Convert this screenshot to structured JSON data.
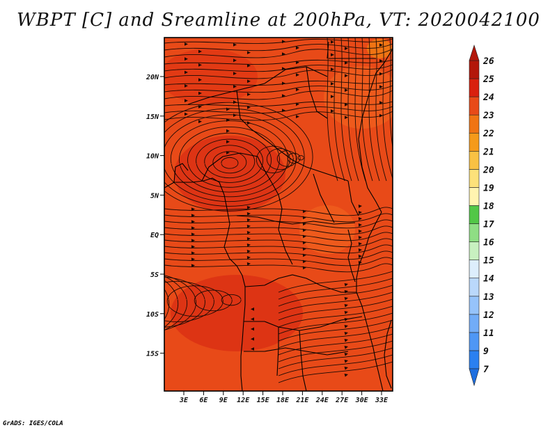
{
  "title": "WBPT [C] and Sreamline at 200hPa, VT: 2020042100",
  "credit": "GrADS: IGES/COLA",
  "map": {
    "lat_labels": [
      "20N",
      "15N",
      "10N",
      "5N",
      "EQ",
      "5S",
      "10S",
      "15S"
    ],
    "lon_labels": [
      "3E",
      "6E",
      "9E",
      "12E",
      "15E",
      "18E",
      "21E",
      "24E",
      "27E",
      "30E",
      "33E"
    ],
    "field_color": "#e23a14",
    "background_color": "#e84a18"
  },
  "colorbar": {
    "labels": [
      "7",
      "9",
      "11",
      "12",
      "13",
      "14",
      "15",
      "16",
      "17",
      "18",
      "19",
      "20",
      "21",
      "22",
      "23",
      "24",
      "25",
      "26"
    ],
    "colors": [
      "#1e6fe0",
      "#2a80f0",
      "#4f97f5",
      "#72acf7",
      "#96c3fa",
      "#bad8fb",
      "#ddeefc",
      "#c8f0c0",
      "#8fde84",
      "#52c747",
      "#fff4b0",
      "#fde17a",
      "#f9c143",
      "#f59a1a",
      "#f07413",
      "#e84a18",
      "#d9200e",
      "#b3170a"
    ]
  }
}
